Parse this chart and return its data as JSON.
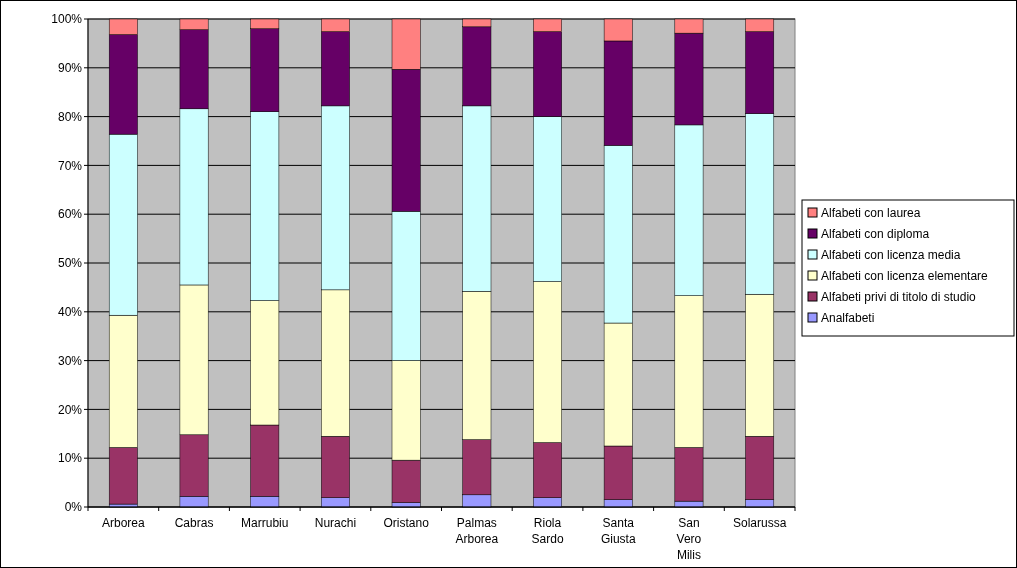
{
  "chart_data": {
    "type": "bar",
    "stacked": true,
    "categories": [
      "Arborea",
      "Cabras",
      "Marrubiu",
      "Nurachi",
      "Oristano",
      "Palmas Arborea",
      "Riola Sardo",
      "Santa Giusta",
      "San Vero Milis",
      "Solarussa"
    ],
    "series": [
      {
        "name": "Analfabeti",
        "color": "#9999ff",
        "values": [
          0.6,
          2.2,
          2.2,
          1.9,
          0.9,
          2.5,
          1.9,
          1.5,
          1.2,
          1.5
        ]
      },
      {
        "name": "Alfabeti privi di titolo di studio",
        "color": "#993366",
        "values": [
          11.6,
          12.6,
          14.6,
          12.6,
          8.7,
          11.3,
          11.3,
          11.0,
          11.0,
          13.0
        ]
      },
      {
        "name": "Alfabeti con licenza elementare",
        "color": "#ffffcc",
        "values": [
          27.1,
          30.7,
          25.5,
          30.0,
          20.4,
          30.4,
          33.0,
          25.2,
          31.1,
          29.1
        ]
      },
      {
        "name": "Alfabeti con licenza media",
        "color": "#ccffff",
        "values": [
          37.1,
          36.1,
          38.7,
          37.7,
          30.6,
          38.0,
          33.8,
          36.4,
          35.0,
          37.0
        ]
      },
      {
        "name": "Alfabeti con diploma",
        "color": "#660066",
        "values": [
          20.4,
          16.2,
          17.0,
          15.2,
          29.1,
          16.2,
          17.4,
          21.4,
          18.8,
          16.8
        ]
      },
      {
        "name": "Alfabeti con laurea",
        "color": "#ff8080",
        "values": [
          3.2,
          2.2,
          2.0,
          2.6,
          10.3,
          1.6,
          2.6,
          4.5,
          2.9,
          2.6
        ]
      }
    ],
    "ylim": [
      0,
      100
    ],
    "yticks": [
      {
        "value": 0,
        "label": "0%"
      },
      {
        "value": 10,
        "label": "10%"
      },
      {
        "value": 20,
        "label": "20%"
      },
      {
        "value": 30,
        "label": "30%"
      },
      {
        "value": 40,
        "label": "40%"
      },
      {
        "value": 50,
        "label": "50%"
      },
      {
        "value": 60,
        "label": "60%"
      },
      {
        "value": 70,
        "label": "70%"
      },
      {
        "value": 80,
        "label": "80%"
      },
      {
        "value": 90,
        "label": "90%"
      },
      {
        "value": 100,
        "label": "100%"
      }
    ],
    "grid": "y",
    "legend": "right"
  }
}
